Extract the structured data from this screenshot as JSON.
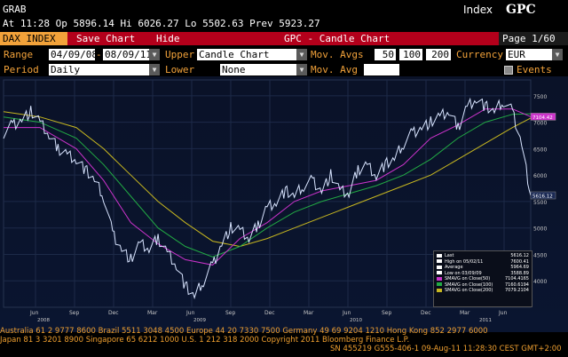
{
  "header": {
    "title": "GRAB",
    "quote": "At 11:28 Op 5896.14   Hi 6026.27   Lo 5502.63   Prev 5923.27",
    "index_label": "Index",
    "ticker": "GPC"
  },
  "toolbar": {
    "security": "DAX INDEX",
    "save_chart": "Save Chart",
    "hide": "Hide",
    "chart_title": "GPC - Candle Chart",
    "page": "Page 1/60"
  },
  "settings": {
    "range_label": "Range",
    "range_start": "04/09/08",
    "range_sep": "-",
    "range_end": "08/09/11",
    "upper_label": "Upper",
    "upper_value": "Candle Chart",
    "mov_avgs_label": "Mov. Avgs",
    "mov_avgs": [
      "50",
      "100",
      "200"
    ],
    "currency_label": "Currency",
    "currency_value": "EUR",
    "period_label": "Period",
    "period_value": "Daily",
    "lower_label": "Lower",
    "lower_value": "None",
    "mov_avg_label": "Mov. Avg",
    "events_label": "Events"
  },
  "colors": {
    "price": "#d8e4ff",
    "sma50": "#cc33cc",
    "sma100": "#22aa44",
    "sma200": "#c8b820",
    "accent_orange": "#f2a23a",
    "toolbar_red": "#b3001b"
  },
  "chart_data": {
    "type": "line",
    "title": "",
    "y_ticks": [
      "7500",
      "7000",
      "6500",
      "6000",
      "5500",
      "5000",
      "4500",
      "4000"
    ],
    "x_month_labels": [
      "Jun",
      "Sep",
      "Dec",
      "Mar",
      "Jun",
      "Sep",
      "Dec",
      "Mar",
      "Jun",
      "Sep",
      "Dec",
      "Mar",
      "Jun"
    ],
    "x_year_labels": [
      "2008",
      "2009",
      "2010",
      "2011"
    ],
    "ylim": [
      3500,
      7800
    ],
    "x_range": [
      "2008-04-09",
      "2011-08-09"
    ],
    "series": [
      {
        "name": "Last",
        "values": [
          [
            0,
            6800
          ],
          [
            1,
            6950
          ],
          [
            2,
            7050
          ],
          [
            3,
            7200
          ],
          [
            4,
            7000
          ],
          [
            5,
            6750
          ],
          [
            6,
            6500
          ],
          [
            7,
            6400
          ],
          [
            8,
            6300
          ],
          [
            9,
            6100
          ],
          [
            10,
            5900
          ],
          [
            11,
            5600
          ],
          [
            12,
            4900
          ],
          [
            13,
            4600
          ],
          [
            14,
            4400
          ],
          [
            15,
            4700
          ],
          [
            16,
            4600
          ],
          [
            17,
            4800
          ],
          [
            18,
            4550
          ],
          [
            19,
            4300
          ],
          [
            20,
            3900
          ],
          [
            21,
            3700
          ],
          [
            22,
            4000
          ],
          [
            23,
            4300
          ],
          [
            24,
            4700
          ],
          [
            25,
            5000
          ],
          [
            26,
            4950
          ],
          [
            27,
            4800
          ],
          [
            28,
            5050
          ],
          [
            29,
            5400
          ],
          [
            30,
            5500
          ],
          [
            31,
            5700
          ],
          [
            32,
            5600
          ],
          [
            33,
            5800
          ],
          [
            34,
            5900
          ],
          [
            35,
            5700
          ],
          [
            36,
            6000
          ],
          [
            37,
            5700
          ],
          [
            38,
            5650
          ],
          [
            39,
            6100
          ],
          [
            40,
            6200
          ],
          [
            41,
            6000
          ],
          [
            42,
            6200
          ],
          [
            43,
            6300
          ],
          [
            44,
            6600
          ],
          [
            45,
            6800
          ],
          [
            46,
            6900
          ],
          [
            47,
            7000
          ],
          [
            48,
            7100
          ],
          [
            49,
            7200
          ],
          [
            50,
            6900
          ],
          [
            51,
            7300
          ],
          [
            52,
            7450
          ],
          [
            53,
            7300
          ],
          [
            54,
            7200
          ],
          [
            55,
            7400
          ],
          [
            56,
            7200
          ],
          [
            57,
            6600
          ],
          [
            58,
            5616
          ]
        ]
      },
      {
        "name": "SMAVG on Close(50)",
        "values": [
          [
            0,
            6900
          ],
          [
            4,
            6900
          ],
          [
            8,
            6500
          ],
          [
            11,
            5900
          ],
          [
            14,
            5100
          ],
          [
            17,
            4700
          ],
          [
            20,
            4400
          ],
          [
            23,
            4300
          ],
          [
            26,
            4800
          ],
          [
            29,
            5100
          ],
          [
            32,
            5500
          ],
          [
            35,
            5700
          ],
          [
            38,
            5800
          ],
          [
            41,
            5900
          ],
          [
            44,
            6200
          ],
          [
            47,
            6700
          ],
          [
            50,
            6950
          ],
          [
            53,
            7250
          ],
          [
            56,
            7250
          ],
          [
            58,
            7104
          ]
        ]
      },
      {
        "name": "SMAVG on Close(100)",
        "values": [
          [
            0,
            7100
          ],
          [
            4,
            7000
          ],
          [
            8,
            6700
          ],
          [
            11,
            6200
          ],
          [
            14,
            5600
          ],
          [
            17,
            5000
          ],
          [
            20,
            4650
          ],
          [
            23,
            4450
          ],
          [
            26,
            4650
          ],
          [
            29,
            5000
          ],
          [
            32,
            5300
          ],
          [
            35,
            5500
          ],
          [
            38,
            5650
          ],
          [
            41,
            5800
          ],
          [
            44,
            6000
          ],
          [
            47,
            6300
          ],
          [
            50,
            6700
          ],
          [
            53,
            7000
          ],
          [
            56,
            7150
          ],
          [
            58,
            7160
          ]
        ]
      },
      {
        "name": "SMAVG on Close(200)",
        "values": [
          [
            0,
            7200
          ],
          [
            4,
            7100
          ],
          [
            8,
            6900
          ],
          [
            11,
            6500
          ],
          [
            14,
            6000
          ],
          [
            17,
            5500
          ],
          [
            20,
            5100
          ],
          [
            23,
            4750
          ],
          [
            26,
            4650
          ],
          [
            29,
            4800
          ],
          [
            32,
            5000
          ],
          [
            35,
            5200
          ],
          [
            38,
            5400
          ],
          [
            41,
            5600
          ],
          [
            44,
            5800
          ],
          [
            47,
            6000
          ],
          [
            50,
            6300
          ],
          [
            53,
            6600
          ],
          [
            56,
            6900
          ],
          [
            58,
            7079
          ]
        ]
      }
    ],
    "price_tags": [
      {
        "value": "7104.42",
        "y": 7104.42
      },
      {
        "value": "5616.12",
        "y": 5616.12
      }
    ],
    "legend": [
      {
        "label": "Last",
        "value": "5616.12",
        "color": "#ffffff"
      },
      {
        "label": "High on 05/02/11",
        "value": "7600.41",
        "color": "#ffffff"
      },
      {
        "label": "Average",
        "value": "5964.69",
        "color": "#ffffff"
      },
      {
        "label": "Low on 03/09/09",
        "value": "3588.89",
        "color": "#ffffff"
      },
      {
        "label": "SMAVG on Close(50)",
        "value": "7104.4165",
        "color": "#cc33cc"
      },
      {
        "label": "SMAVG on Close(100)",
        "value": "7160.6194",
        "color": "#22aa44"
      },
      {
        "label": "SMAVG on Close(200)",
        "value": "7079.2104",
        "color": "#c8b820"
      }
    ]
  },
  "footer": {
    "line1": "Australia 61 2 9777 8600 Brazil 5511 3048 4500 Europe 44 20 7330 7500 Germany 49 69 9204 1210 Hong Kong 852 2977 6000",
    "line2": "Japan 81 3 3201 8900          Singapore 65 6212 1000          U.S. 1 212 318 2000          Copyright 2011 Bloomberg Finance L.P.",
    "line3": "SN 455219 G555-406-1 09-Aug-11 11:28:30 CEST GMT+2:00"
  }
}
